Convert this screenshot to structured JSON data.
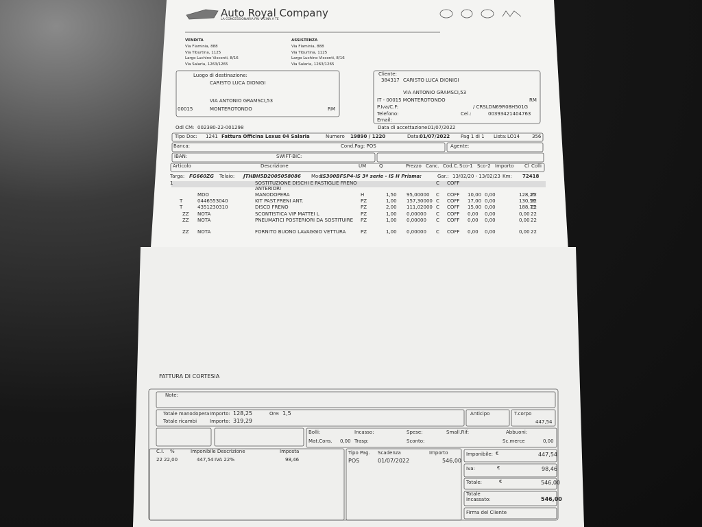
{
  "header": {
    "company": "Auto Royal Company",
    "tagline": "LA CONCESSIONARIA PIU VICINA A TE"
  },
  "vendita": {
    "title": "VENDITA",
    "addresses": [
      "Via Flaminia, 888",
      "Via Tiburtina, 1125",
      "Largo Luchino Visconti, 8/16",
      "Via Salaria, 1263/1265"
    ]
  },
  "assistenza": {
    "title": "ASSISTENZA",
    "addresses": [
      "Via Flaminia, 888",
      "Via Tiburtina, 1125",
      "Largo Luchino Visconti, 8/16",
      "Via Salaria, 1263/1265"
    ]
  },
  "destination": {
    "label": "Luogo di destinazione:",
    "name": "CARISTO LUCA DIONIGI",
    "address": "VIA ANTONIO GRAMSCI,53",
    "cap": "00015",
    "city": "MONTEROTONDO",
    "prov": "RM"
  },
  "client": {
    "label": "Cliente:",
    "code": "384317",
    "name": "CARISTO LUCA DIONIGI",
    "address": "VIA ANTONIO GRAMSCI,53",
    "city": "IT - 00015 MONTEROTONDO",
    "prov": "RM",
    "piva_label": "P.Iva/C.F:",
    "cf": "/ CRSLDN69R08H501G",
    "tel_label": "Telefono:",
    "cel_label": "Cel.:",
    "cel": "00393421404763",
    "email_label": "Email:"
  },
  "order": {
    "odl_label": "Odl CM:",
    "odl": "002380-22-001298",
    "accept_label": "Data di accettazione:",
    "accept": "01/07/2022"
  },
  "document": {
    "type_label": "Tipo Doc:",
    "type_code": "1241",
    "type_name": "Fattura Officina Lexus 04 Salaria",
    "number_label": "Numero",
    "number": "19890 / 1220",
    "date_label": "Data:",
    "date": "01/07/2022",
    "page": "Pag 1 di 1",
    "list_label": "Lista:",
    "list": "LO14",
    "list_code": "356"
  },
  "payment": {
    "bank_label": "Banca:",
    "terms": "Cond.Pag: POS",
    "agent_label": "Agente:",
    "iban_label": "IBAN:",
    "swift_label": "SWIFT-BIC:"
  },
  "columns": [
    "Articolo",
    "Descrizione",
    "UM",
    "Q",
    "Prezzo",
    "Canc.",
    "Cod.C.",
    "Sco-1",
    "Sco-2",
    "Importo",
    "Cl",
    "Colli"
  ],
  "vehicle": {
    "plate_label": "Targa:",
    "plate": "FG660ZG",
    "vin_label": "Telaio:",
    "vin": "JTHBH5D2005058086",
    "model_label": "Mod:",
    "model": "IS300BFSP4-IS 3ª serie - IS H Prisma:",
    "warranty_label": "Gar.:",
    "warranty": "13/02/20 - 13/02/23",
    "km_label": "Km:",
    "km": "72418"
  },
  "items": [
    {
      "type": "1",
      "desc": "SOSTITUZIONE DISCHI E PASTIGLIE FRENO ANTERIORI",
      "c": "C",
      "coff": "COFF"
    },
    {
      "code": "MDO",
      "desc": "MANODOPERA",
      "um": "H",
      "q": "1,50",
      "price": "95,00000",
      "c": "C",
      "coff": "COFF",
      "sc1": "10,00",
      "sc2": "0,00",
      "amount": "128,25",
      "cl": "22"
    },
    {
      "type": "T",
      "code": "0446553040",
      "desc": "KIT PAST.FRENI ANT.",
      "um": "PZ",
      "q": "1,00",
      "price": "157,30000",
      "c": "C",
      "coff": "COFF",
      "sc1": "17,00",
      "sc2": "0,00",
      "amount": "130,56",
      "cl": "22"
    },
    {
      "type": "T",
      "code": "4351230310",
      "desc": "DISCO FRENO",
      "um": "PZ",
      "q": "2,00",
      "price": "111,02000",
      "c": "C",
      "coff": "COFF",
      "sc1": "15,00",
      "sc2": "0,00",
      "amount": "188,73",
      "cl": "22"
    },
    {
      "type": "ZZ",
      "code": "NOTA",
      "desc": "SCONTISTICA VIP MATTEI L",
      "um": "PZ",
      "q": "1,00",
      "price": "0,00000",
      "c": "C",
      "coff": "COFF",
      "sc1": "0,00",
      "sc2": "0,00",
      "amount": "0,00",
      "cl": "22"
    },
    {
      "type": "ZZ",
      "code": "NOTA",
      "desc": "PNEUMATICI POSTERIORI DA SOSTITUIRE",
      "um": "PZ",
      "q": "1,00",
      "price": "0,00000",
      "c": "C",
      "coff": "COFF",
      "sc1": "0,00",
      "sc2": "0,00",
      "amount": "0,00",
      "cl": "22"
    },
    {
      "type": "ZZ",
      "code": "NOTA",
      "desc": "FORNITO BUONO LAVAGGIO VETTURA",
      "um": "PZ",
      "q": "1,00",
      "price": "0,00000",
      "c": "C",
      "coff": "COFF",
      "sc1": "0,00",
      "sc2": "0,00",
      "amount": "0,00",
      "cl": "22"
    }
  ],
  "footer": {
    "title": "FATTURA DI CORTESIA",
    "note_label": "Note:",
    "labor_label": "Totale manodopera",
    "labor_amount_label": "Importo:",
    "labor_amount": "128,25",
    "hours_label": "Ore:",
    "hours": "1,5",
    "parts_label": "Totale ricambi",
    "parts_amount_label": "Importo:",
    "parts_amount": "319,29",
    "advance_label": "Anticipo",
    "body_label": "T.corpo",
    "body_amount": "447,54",
    "stamps_label": "Bolli:",
    "collection_label": "Incasso:",
    "expenses_label": "Spese:",
    "ref_label": "Small.Rif:",
    "allowances_label": "Abbuoni:",
    "materials_label": "Mat.Cons.",
    "materials": "0,00",
    "transport_label": "Trasp:",
    "discount_label": "Sconto:",
    "goods_discount_label": "Sc.merce",
    "goods_discount": "0,00",
    "vat_headers": {
      "code": "C.I.",
      "pct": "%",
      "base_desc": "Imponibile Descrizione",
      "tax": "Imposta"
    },
    "vat_row": {
      "code": "22",
      "pct": "22,00",
      "base": "447,54",
      "desc": "IVA 22%",
      "tax": "98,46"
    },
    "pay_headers": {
      "type": "Tipo Pag.",
      "due": "Scadenza",
      "amount": "Importo"
    },
    "pay_row": {
      "type": "POS",
      "due": "01/07/2022",
      "amount": "546,00"
    },
    "taxable_label": "Imponibile:",
    "taxable_currency": "€",
    "taxable": "447,54",
    "vat_label": "Iva:",
    "vat_currency": "€",
    "vat": "98,46",
    "total_label": "Totale:",
    "total_currency": "€",
    "total": "546,00",
    "collected_label": "Totale Incassato:",
    "collected": "546,00",
    "signature_label": "Firma del Cliente"
  }
}
